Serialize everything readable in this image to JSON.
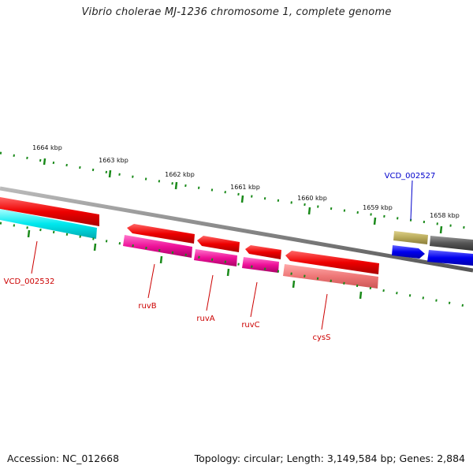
{
  "title": "Vibrio cholerae MJ-1236 chromosome 1, complete genome",
  "footer": {
    "accession": "Accession: NC_012668",
    "summary": "Topology: circular; Length: 3,149,584 bp; Genes: 2,884"
  },
  "ticks": [
    "1664 kbp",
    "1663 kbp",
    "1662 kbp",
    "1661 kbp",
    "1660 kbp",
    "1659 kbp",
    "1658 kbp"
  ],
  "gene_labels": [
    {
      "text": "VCD_002527",
      "color": "#0000cc"
    },
    {
      "text": "VCD_002532",
      "color": "#cc0000"
    },
    {
      "text": "ruvB",
      "color": "#cc0000"
    },
    {
      "text": "ruvA",
      "color": "#cc0000"
    },
    {
      "text": "ruvC",
      "color": "#cc0000"
    },
    {
      "text": "cysS",
      "color": "#cc0000"
    }
  ],
  "colors": {
    "red": "#ee0000",
    "cyan": "#00e8ee",
    "magenta": "#ee1199",
    "salmon": "#ee7777",
    "olive": "#b8aa5a",
    "blue": "#0000ee",
    "dark_gray": "#555555",
    "backbone": "#888888",
    "tick": "#1a8a1a"
  }
}
